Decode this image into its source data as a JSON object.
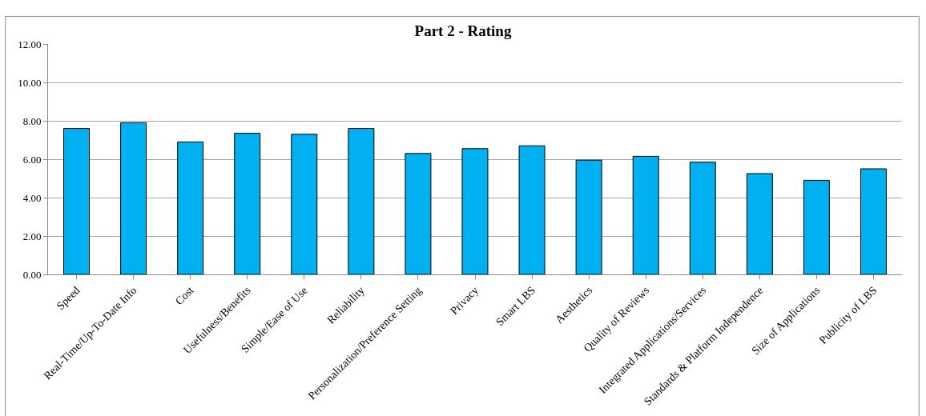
{
  "chart_data": {
    "type": "bar",
    "title": "Part 2 - Rating",
    "categories": [
      "Speed",
      "Real-Time/Up-To-Date Info",
      "Cost",
      "Usefulness/Benefits",
      "Simple/Ease of Use",
      "Reliability",
      "Personalization/Preference Setting",
      "Privacy",
      "Smart LBS",
      "Aesthetics",
      "Quality of Reviews",
      "Integrated Applications/Services",
      "Standards & Platform Independence",
      "Size of Applications",
      "Publicity of LBS"
    ],
    "values": [
      7.6,
      7.9,
      6.9,
      7.35,
      7.3,
      7.6,
      6.3,
      6.55,
      6.7,
      5.95,
      6.15,
      5.85,
      5.25,
      4.9,
      5.5
    ],
    "color": "#00b0f0",
    "ylim": [
      0,
      12
    ],
    "yticks": [
      {
        "value": 0,
        "label": "0.00"
      },
      {
        "value": 2,
        "label": "2.00"
      },
      {
        "value": 4,
        "label": "4.00"
      },
      {
        "value": 6,
        "label": "6.00"
      },
      {
        "value": 8,
        "label": "8.00"
      },
      {
        "value": 10,
        "label": "10.00"
      },
      {
        "value": 12,
        "label": "12.00"
      }
    ],
    "grid": "y"
  }
}
